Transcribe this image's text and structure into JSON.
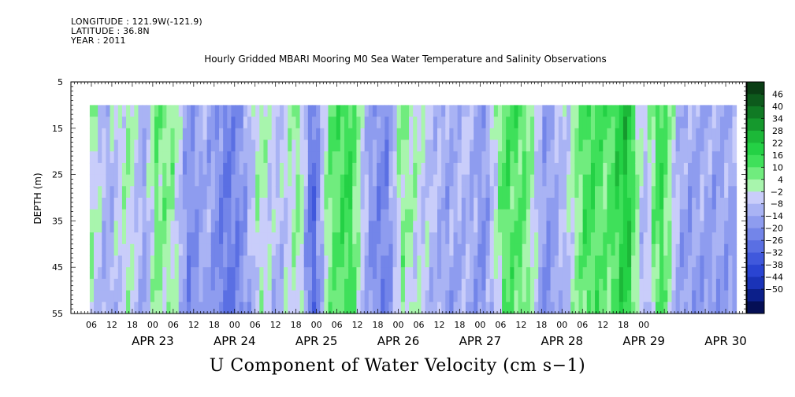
{
  "header": {
    "longitude": "LONGITUDE : 121.9W(-121.9)",
    "latitude": "LATITUDE : 36.8N",
    "year": "YEAR : 2011",
    "title": "Hourly Gridded MBARI Mooring M0 Sea Water Temperature and Salinity Observations"
  },
  "footer_label": "U Component of Water Velocity (cm s−1)",
  "chart_data": {
    "type": "heatmap",
    "title": "Hourly Gridded MBARI Mooring M0 Sea Water Temperature and Salinity Observations",
    "xlabel": "",
    "ylabel": "DEPTH (m)",
    "variable": "U Component of Water Velocity (cm s−1)",
    "x_tick_hours": [
      "06",
      "12",
      "18",
      "00",
      "06",
      "12",
      "18",
      "00",
      "06",
      "12",
      "18",
      "00",
      "06",
      "12",
      "18",
      "00",
      "06",
      "12",
      "18",
      "00",
      "06",
      "12",
      "18",
      "00",
      "06",
      "12",
      "18",
      "00"
    ],
    "x_day_labels": [
      "APR 23",
      "APR 24",
      "APR 25",
      "APR 26",
      "APR 27",
      "APR 28",
      "APR 29",
      "APR 30"
    ],
    "y_ticks": [
      "5",
      "15",
      "25",
      "35",
      "45",
      "55"
    ],
    "ylim": [
      55,
      5
    ],
    "data_depth_range_m": [
      10,
      55
    ],
    "colorbar": {
      "labels": [
        "46",
        "40",
        "34",
        "28",
        "22",
        "16",
        "10",
        "4",
        "−2",
        "−8",
        "−14",
        "−20",
        "−26",
        "−32",
        "−38",
        "−44",
        "−50"
      ],
      "colors": [
        "#0a3d14",
        "#0d5a1c",
        "#107a24",
        "#15992d",
        "#1cb838",
        "#24d145",
        "#3fe05a",
        "#70ec7e",
        "#a8f5ad",
        "#c9cdfa",
        "#a9b3f4",
        "#8e9cef",
        "#7385e9",
        "#5a6fe3",
        "#4058dc",
        "#2a44d2",
        "#1a33b8",
        "#0c1f8a",
        "#050f55"
      ],
      "min": -50,
      "max": 46
    },
    "colors": {
      "green_pos": "#33ee66",
      "light_green": "#99f5aa",
      "lavender": "#aab3f5",
      "blue_neg": "#7f8ff0",
      "deep_blue": "#3d5ae0"
    },
    "u_bands": [
      {
        "day": 22.2,
        "u": 6
      },
      {
        "day": 22.45,
        "u": -8
      },
      {
        "day": 22.7,
        "u": 3
      },
      {
        "day": 22.9,
        "u": -10
      },
      {
        "day": 23.05,
        "u": 8
      },
      {
        "day": 23.25,
        "u": 4
      },
      {
        "day": 23.45,
        "u": -16
      },
      {
        "day": 23.65,
        "u": -8
      },
      {
        "day": 23.9,
        "u": -20
      },
      {
        "day": 24.1,
        "u": -14
      },
      {
        "day": 24.3,
        "u": 3
      },
      {
        "day": 24.55,
        "u": -6
      },
      {
        "day": 24.8,
        "u": 6
      },
      {
        "day": 24.95,
        "u": -26
      },
      {
        "day": 25.15,
        "u": 8
      },
      {
        "day": 25.4,
        "u": 16
      },
      {
        "day": 25.65,
        "u": -12
      },
      {
        "day": 25.85,
        "u": -18
      },
      {
        "day": 26.05,
        "u": 6
      },
      {
        "day": 26.3,
        "u": -2
      },
      {
        "day": 26.6,
        "u": -10
      },
      {
        "day": 26.85,
        "u": -6
      },
      {
        "day": 27.05,
        "u": -14
      },
      {
        "day": 27.3,
        "u": 12
      },
      {
        "day": 27.55,
        "u": 10
      },
      {
        "day": 27.8,
        "u": -14
      },
      {
        "day": 28.05,
        "u": -4
      },
      {
        "day": 28.3,
        "u": 14
      },
      {
        "day": 28.55,
        "u": 10
      },
      {
        "day": 28.8,
        "u": 22
      },
      {
        "day": 29.0,
        "u": -8
      },
      {
        "day": 29.2,
        "u": 16
      },
      {
        "day": 29.45,
        "u": -10
      }
    ]
  }
}
